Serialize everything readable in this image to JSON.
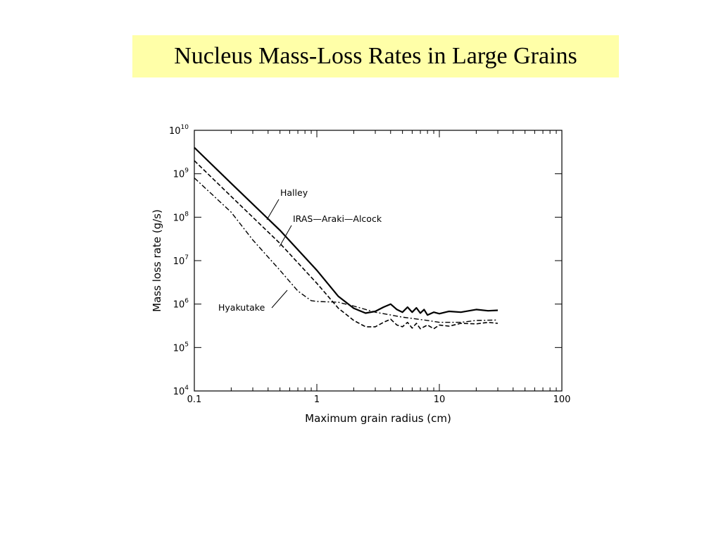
{
  "slide": {
    "title": "Nucleus Mass-Loss Rates in Large Grains",
    "title_bg_color": "#ffffa8"
  },
  "chart_data": {
    "type": "line",
    "title": "",
    "xlabel": "Maximum grain radius (cm)",
    "ylabel": "Mass loss rate (g/s)",
    "xscale": "log",
    "yscale": "log",
    "xlim": [
      0.1,
      100
    ],
    "ylim": [
      10000,
      10000000000
    ],
    "x_ticks": [
      {
        "value": 0.1,
        "label": "0.1"
      },
      {
        "value": 1,
        "label": "1"
      },
      {
        "value": 10,
        "label": "10"
      },
      {
        "value": 100,
        "label": "100"
      }
    ],
    "y_ticks": [
      {
        "value": 10000,
        "base": "10",
        "exp": "4"
      },
      {
        "value": 100000,
        "base": "10",
        "exp": "5"
      },
      {
        "value": 1000000,
        "base": "10",
        "exp": "6"
      },
      {
        "value": 10000000,
        "base": "10",
        "exp": "7"
      },
      {
        "value": 100000000,
        "base": "10",
        "exp": "8"
      },
      {
        "value": 1000000000,
        "base": "10",
        "exp": "9"
      },
      {
        "value": 10000000000,
        "base": "10",
        "exp": "10"
      }
    ],
    "grid": false,
    "series": [
      {
        "name": "Halley",
        "style": "solid",
        "x": [
          0.1,
          0.2,
          0.5,
          1.0,
          1.5,
          2.0,
          2.5,
          3.0,
          3.5,
          4.0,
          4.5,
          5.0,
          5.5,
          6.0,
          6.5,
          7.0,
          7.5,
          8.0,
          9.0,
          10.0,
          12.0,
          15.0,
          20.0,
          25.0,
          30.0
        ],
        "y": [
          4000000000,
          600000000,
          50000000,
          6000000,
          1500000,
          800000,
          620000,
          680000,
          850000,
          1000000,
          750000,
          650000,
          850000,
          650000,
          820000,
          620000,
          750000,
          560000,
          650000,
          600000,
          680000,
          650000,
          750000,
          700000,
          720000
        ]
      },
      {
        "name": "IRAS-Araki-Alcock",
        "style": "dashed",
        "x": [
          0.1,
          0.2,
          0.5,
          1.0,
          1.5,
          2.0,
          2.5,
          3.0,
          3.5,
          4.0,
          4.5,
          5.0,
          5.5,
          6.0,
          6.5,
          7.0,
          8.0,
          9.0,
          10.0,
          12.0,
          15.0,
          20.0,
          25.0,
          30.0
        ],
        "y": [
          2000000000,
          300000000,
          25000000,
          3000000,
          800000,
          420000,
          300000,
          300000,
          380000,
          450000,
          330000,
          300000,
          380000,
          280000,
          360000,
          270000,
          330000,
          270000,
          330000,
          310000,
          360000,
          350000,
          380000,
          360000
        ]
      },
      {
        "name": "Hyakutake",
        "style": "dash-dot",
        "x": [
          0.1,
          0.2,
          0.3,
          0.5,
          0.7,
          0.9,
          1.0,
          1.5,
          2.0,
          3.0,
          5.0,
          8.0,
          10.0,
          15.0,
          20.0,
          30.0
        ],
        "y": [
          800000000,
          130000000,
          30000000,
          6000000,
          2000000,
          1200000,
          1150000,
          1100000,
          900000,
          650000,
          500000,
          420000,
          380000,
          380000,
          420000,
          430000
        ]
      }
    ],
    "annotations": [
      {
        "text": "Halley",
        "series": "Halley"
      },
      {
        "text": "IRAS—Araki—Alcock",
        "series": "IRAS-Araki-Alcock"
      },
      {
        "text": "Hyakutake",
        "series": "Hyakutake"
      }
    ]
  }
}
